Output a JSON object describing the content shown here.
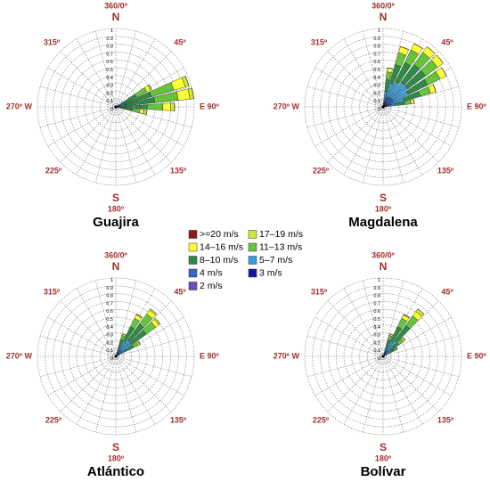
{
  "chart_data": [
    {
      "type": "wind_rose",
      "title": "Guajira",
      "direction_labels": {
        "north_degree": "360/0º",
        "north": "N",
        "ne": "45º",
        "east": "E 90º",
        "se": "135º",
        "south": "S",
        "south_degree": "180º",
        "sw": "225º",
        "west": "270º W",
        "nw": "315º"
      },
      "rlim": [
        0,
        1
      ],
      "rticks": [
        0,
        0.1,
        0.2,
        0.3,
        0.4,
        0.5,
        0.6,
        0.7,
        0.8,
        0.9,
        1
      ],
      "directions": [
        60,
        70,
        80,
        90,
        100
      ],
      "series": [
        {
          "values": [
            0,
            0,
            0,
            0,
            0
          ]
        },
        {
          "values": [
            0.02,
            0.05,
            0.05,
            0.05,
            0.04
          ]
        },
        {
          "values": [
            0.05,
            0.15,
            0.15,
            0.1,
            0.05
          ]
        },
        {
          "values": [
            0.15,
            0.3,
            0.3,
            0.2,
            0.1
          ]
        },
        {
          "values": [
            0.2,
            0.35,
            0.38,
            0.3,
            0.15
          ]
        },
        {
          "values": [
            0.05,
            0.08,
            0.08,
            0.06,
            0.03
          ]
        },
        {
          "values": [
            0.02,
            0.02,
            0.02,
            0.02,
            0.01
          ]
        },
        {
          "values": [
            0.01,
            0.01,
            0.01,
            0.01,
            0.01
          ]
        },
        {
          "values": [
            0.01,
            0.01,
            0.01,
            0.01,
            0.01
          ]
        }
      ]
    },
    {
      "type": "wind_rose",
      "title": "Magdalena",
      "direction_labels": {
        "north_degree": "360/0º",
        "north": "N",
        "ne": "45º",
        "east": "E 90º",
        "se": "135º",
        "south": "S",
        "south_degree": "180º",
        "sw": "225º",
        "west": "270º W",
        "nw": "315º"
      },
      "rlim": [
        0,
        1
      ],
      "rticks": [
        0,
        0.1,
        0.2,
        0.3,
        0.4,
        0.5,
        0.6,
        0.7,
        0.8,
        0.9,
        1
      ],
      "directions": [
        10,
        20,
        30,
        40,
        50,
        60,
        70,
        80
      ],
      "series": [
        {
          "values": [
            0,
            0,
            0,
            0,
            0,
            0,
            0,
            0
          ]
        },
        {
          "values": [
            0,
            0,
            0,
            0,
            0,
            0,
            0,
            0
          ]
        },
        {
          "values": [
            0.05,
            0.08,
            0.09,
            0.09,
            0.09,
            0.09,
            0.07,
            0.04
          ]
        },
        {
          "values": [
            0.1,
            0.16,
            0.18,
            0.19,
            0.19,
            0.18,
            0.14,
            0.08
          ]
        },
        {
          "values": [
            0.15,
            0.24,
            0.27,
            0.28,
            0.28,
            0.27,
            0.21,
            0.12
          ]
        },
        {
          "values": [
            0.12,
            0.2,
            0.22,
            0.24,
            0.24,
            0.22,
            0.18,
            0.1
          ]
        },
        {
          "values": [
            0.05,
            0.08,
            0.09,
            0.1,
            0.1,
            0.09,
            0.07,
            0.04
          ]
        },
        {
          "values": [
            0.02,
            0.02,
            0.03,
            0.03,
            0.03,
            0.03,
            0.02,
            0.01
          ]
        },
        {
          "values": [
            0.01,
            0.02,
            0.02,
            0.02,
            0.02,
            0.02,
            0.01,
            0.01
          ]
        }
      ]
    },
    {
      "type": "wind_rose",
      "title": "Atlántico",
      "direction_labels": {
        "north_degree": "360/0º",
        "north": "N",
        "ne": "45º",
        "east": "E 90º",
        "se": "135º",
        "south": "S",
        "south_degree": "180º",
        "sw": "225º",
        "west": "270º W",
        "nw": "315º"
      },
      "rlim": [
        0,
        1
      ],
      "rticks": [
        0,
        0.1,
        0.2,
        0.3,
        0.4,
        0.5,
        0.6,
        0.7,
        0.8,
        0.9,
        1
      ],
      "directions": [
        20,
        30,
        40,
        50,
        60
      ],
      "series": [
        {
          "values": [
            0,
            0,
            0,
            0,
            0
          ]
        },
        {
          "values": [
            0,
            0.01,
            0.02,
            0.02,
            0.01
          ]
        },
        {
          "values": [
            0.02,
            0.05,
            0.06,
            0.05,
            0.02
          ]
        },
        {
          "values": [
            0.06,
            0.12,
            0.16,
            0.15,
            0.07
          ]
        },
        {
          "values": [
            0.1,
            0.2,
            0.25,
            0.23,
            0.12
          ]
        },
        {
          "values": [
            0.07,
            0.14,
            0.17,
            0.16,
            0.08
          ]
        },
        {
          "values": [
            0.03,
            0.05,
            0.06,
            0.06,
            0.03
          ]
        },
        {
          "values": [
            0.01,
            0.02,
            0.02,
            0.02,
            0.01
          ]
        },
        {
          "values": [
            0.01,
            0.01,
            0.01,
            0.01,
            0.01
          ]
        }
      ]
    },
    {
      "type": "wind_rose",
      "title": "Bolívar",
      "direction_labels": {
        "north_degree": "360/0º",
        "north": "N",
        "ne": "45º",
        "east": "E 90º",
        "se": "135º",
        "south": "S",
        "south_degree": "180º",
        "sw": "225º",
        "west": "270º W",
        "nw": "315º"
      },
      "rlim": [
        0,
        1
      ],
      "rticks": [
        0,
        0.1,
        0.2,
        0.3,
        0.4,
        0.5,
        0.6,
        0.7,
        0.8,
        0.9,
        1
      ],
      "directions": [
        20,
        30,
        40,
        50,
        60
      ],
      "series": [
        {
          "values": [
            0,
            0,
            0,
            0,
            0
          ]
        },
        {
          "values": [
            0,
            0.01,
            0.04,
            0.01,
            0
          ]
        },
        {
          "values": [
            0.02,
            0.05,
            0.07,
            0.02,
            0.01
          ]
        },
        {
          "values": [
            0.06,
            0.12,
            0.15,
            0.07,
            0.03
          ]
        },
        {
          "values": [
            0.1,
            0.2,
            0.24,
            0.12,
            0.07
          ]
        },
        {
          "values": [
            0.07,
            0.14,
            0.16,
            0.08,
            0.05
          ]
        },
        {
          "values": [
            0.03,
            0.05,
            0.06,
            0.03,
            0.02
          ]
        },
        {
          "values": [
            0.01,
            0.02,
            0.02,
            0.01,
            0.01
          ]
        },
        {
          "values": [
            0.01,
            0.01,
            0.01,
            0.01,
            0.01
          ]
        }
      ]
    }
  ],
  "legend": [
    {
      "name": ">=20 m/s",
      "color": "#8b1a1a"
    },
    {
      "name": "17–19 m/s",
      "color": "#ccea3c"
    },
    {
      "name": "14–16 m/s",
      "color": "#ffff33"
    },
    {
      "name": "11–13 m/s",
      "color": "#66c43a"
    },
    {
      "name": "8–10 m/s",
      "color": "#2e8b45"
    },
    {
      "name": "5–7 m/s",
      "color": "#3aa0dc"
    },
    {
      "name": "4 m/s",
      "color": "#3a62c8"
    },
    {
      "name": "3 m/s",
      "color": "#14149c"
    },
    {
      "name": "2 m/s",
      "color": "#6a4fb5"
    }
  ]
}
